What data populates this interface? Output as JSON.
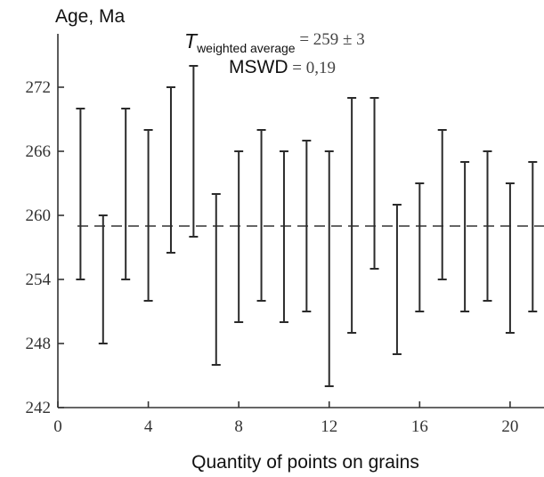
{
  "chart_data": {
    "type": "errorbar",
    "ylabel": "Age, Ma",
    "xlabel": "Quantity of points on grains",
    "annotation": {
      "t_symbol": "T",
      "t_subscript": "weighted average",
      "t_value": " = 259 ± 3",
      "mswd_label": "MSWD",
      "mswd_value": " = 0,19"
    },
    "xlim": [
      0,
      21.5
    ],
    "ylim": [
      242,
      277
    ],
    "xticks": [
      0,
      4,
      8,
      12,
      16,
      20
    ],
    "yticks": [
      242,
      248,
      254,
      260,
      266,
      272
    ],
    "mean": 259,
    "points": [
      {
        "x": 1,
        "low": 254,
        "high": 270
      },
      {
        "x": 2,
        "low": 248,
        "high": 260
      },
      {
        "x": 3,
        "low": 254,
        "high": 270
      },
      {
        "x": 4,
        "low": 252,
        "high": 268
      },
      {
        "x": 5,
        "low": 256.5,
        "high": 272
      },
      {
        "x": 6,
        "low": 258,
        "high": 274
      },
      {
        "x": 7,
        "low": 246,
        "high": 262
      },
      {
        "x": 8,
        "low": 250,
        "high": 266
      },
      {
        "x": 9,
        "low": 252,
        "high": 268
      },
      {
        "x": 10,
        "low": 250,
        "high": 266
      },
      {
        "x": 11,
        "low": 251,
        "high": 267
      },
      {
        "x": 12,
        "low": 244,
        "high": 266
      },
      {
        "x": 13,
        "low": 249,
        "high": 271
      },
      {
        "x": 14,
        "low": 255,
        "high": 271
      },
      {
        "x": 15,
        "low": 247,
        "high": 261
      },
      {
        "x": 16,
        "low": 251,
        "high": 263
      },
      {
        "x": 17,
        "low": 254,
        "high": 268
      },
      {
        "x": 18,
        "low": 251,
        "high": 265
      },
      {
        "x": 19,
        "low": 252,
        "high": 266
      },
      {
        "x": 20,
        "low": 249,
        "high": 263
      },
      {
        "x": 21,
        "low": 251,
        "high": 265
      }
    ]
  }
}
